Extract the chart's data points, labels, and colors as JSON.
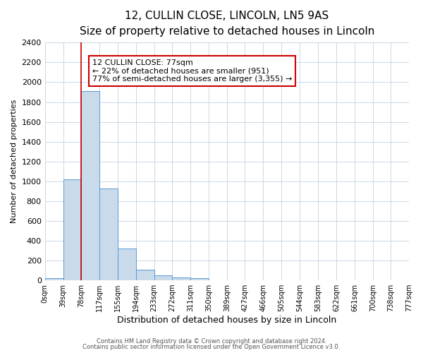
{
  "title_line1": "12, CULLIN CLOSE, LINCOLN, LN5 9AS",
  "title_line2": "Size of property relative to detached houses in Lincoln",
  "xlabel": "Distribution of detached houses by size in Lincoln",
  "ylabel": "Number of detached properties",
  "bin_edges": [
    0,
    39,
    78,
    117,
    155,
    194,
    233,
    272,
    311,
    350,
    389,
    427,
    466,
    505,
    544,
    583,
    622,
    661,
    700,
    738,
    777
  ],
  "bin_labels": [
    "0sqm",
    "39sqm",
    "78sqm",
    "117sqm",
    "155sqm",
    "194sqm",
    "233sqm",
    "272sqm",
    "311sqm",
    "350sqm",
    "389sqm",
    "427sqm",
    "466sqm",
    "505sqm",
    "544sqm",
    "583sqm",
    "622sqm",
    "661sqm",
    "700sqm",
    "738sqm",
    "777sqm"
  ],
  "bar_heights": [
    20,
    1020,
    1910,
    925,
    320,
    110,
    50,
    28,
    20,
    0,
    0,
    0,
    0,
    0,
    0,
    0,
    0,
    0,
    0,
    0
  ],
  "bar_color": "#c9daea",
  "bar_edge_color": "#5b9bd5",
  "property_line_x": 77,
  "property_line_color": "#cc0000",
  "annotation_line1": "12 CULLIN CLOSE: 77sqm",
  "annotation_line2": "← 22% of detached houses are smaller (951)",
  "annotation_line3": "77% of semi-detached houses are larger (3,355) →",
  "ylim": [
    0,
    2400
  ],
  "yticks": [
    0,
    200,
    400,
    600,
    800,
    1000,
    1200,
    1400,
    1600,
    1800,
    2000,
    2200,
    2400
  ],
  "footer_line1": "Contains HM Land Registry data © Crown copyright and database right 2024.",
  "footer_line2": "Contains public sector information licensed under the Open Government Licence v3.0.",
  "background_color": "#ffffff",
  "grid_color": "#c8d8e8",
  "title1_fontsize": 11,
  "title2_fontsize": 9,
  "ylabel_fontsize": 8,
  "xlabel_fontsize": 9,
  "ytick_fontsize": 8,
  "xtick_fontsize": 7,
  "ann_fontsize": 8,
  "footer_fontsize": 6
}
